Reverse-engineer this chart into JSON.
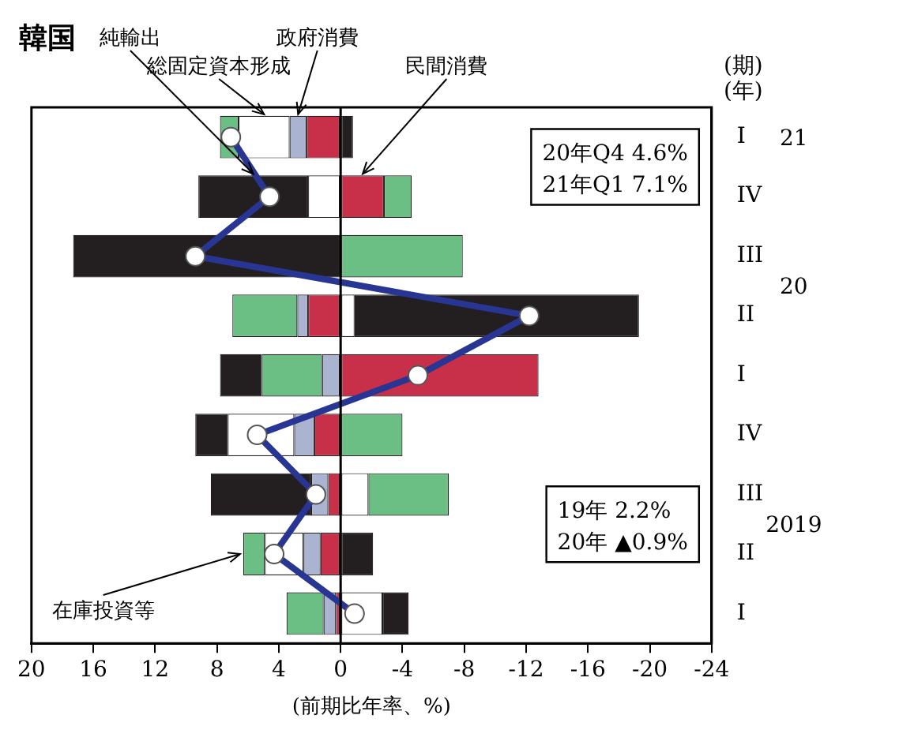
{
  "chart_data": {
    "type": "bar",
    "orientation": "horizontal",
    "stacked": true,
    "title": "韓国",
    "xlabel": "(前期比年率、%)",
    "categories": [
      "I",
      "IV",
      "III",
      "II",
      "I",
      "IV",
      "III",
      "II",
      "I"
    ],
    "series": [
      {
        "name": "民間消費",
        "color": "#c8304a",
        "values": [
          2.2,
          -2.8,
          null,
          2.1,
          -12.8,
          1.7,
          0.8,
          1.3,
          0.3
        ]
      },
      {
        "name": "政府消費",
        "color": "#aab4d0",
        "values": [
          1.1,
          null,
          null,
          0.7,
          1.2,
          1.3,
          1.1,
          1.1,
          0.8
        ]
      },
      {
        "name": "総固定資本形成",
        "color": "#ffffff",
        "values": [
          3.3,
          2.1,
          null,
          -0.9,
          null,
          4.3,
          -1.8,
          2.5,
          -2.7
        ]
      },
      {
        "name": "在庫投資等",
        "color": "#6cbf84",
        "values": [
          1.2,
          -1.8,
          -7.9,
          4.2,
          3.9,
          -4.0,
          -5.2,
          1.4,
          2.4
        ]
      },
      {
        "name": "純輸出",
        "color": "#231f20",
        "values": [
          -0.8,
          7.1,
          17.3,
          -18.4,
          2.7,
          2.1,
          6.5,
          -2.1,
          -1.7
        ]
      },
      {
        "type": "line",
        "color": "#283593",
        "marker": "circle",
        "values": [
          7.1,
          4.6,
          9.4,
          -12.2,
          -5.0,
          5.4,
          1.6,
          4.3,
          -0.9
        ]
      }
    ],
    "xlim": [
      20,
      -24
    ],
    "xticks": [
      20,
      16,
      12,
      8,
      4,
      0,
      -4,
      -8,
      -12,
      -16,
      -20,
      -24
    ],
    "ref_lines": [
      {
        "axis": "x",
        "value": 0,
        "color": "#000000"
      }
    ],
    "annotations": [
      "20年Q4 4.6%\n21年Q1 7.1%",
      "19年 2.2%\n20年 ▲0.9%",
      "2019",
      "20",
      "21",
      "(期)",
      "(年)"
    ],
    "grid": false,
    "legend": false
  }
}
